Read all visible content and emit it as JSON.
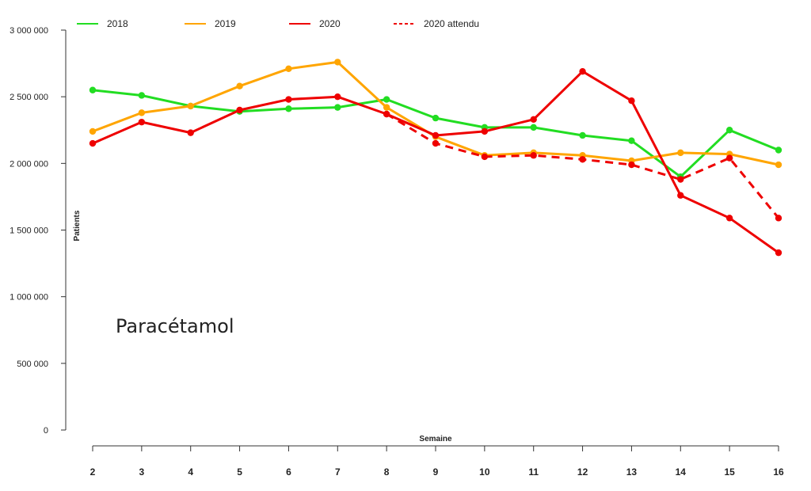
{
  "chart_data": {
    "type": "line",
    "title": "",
    "xlabel": "Semaine",
    "ylabel": "Patients",
    "annotation": "Paracétamol",
    "x": [
      2,
      3,
      4,
      5,
      6,
      7,
      8,
      9,
      10,
      11,
      12,
      13,
      14,
      15,
      16
    ],
    "xlim": [
      2,
      16
    ],
    "ylim": [
      0,
      3000000
    ],
    "yticks": [
      0,
      500000,
      1000000,
      1500000,
      2000000,
      2500000,
      3000000
    ],
    "ytick_labels": [
      "0",
      "500 000",
      "1 000 000",
      "1 500 000",
      "2 000 000",
      "2 500 000",
      "3 000 000"
    ],
    "grid": false,
    "legend_position": "top",
    "series": [
      {
        "name": "2018",
        "color": "#22dd22",
        "dashed": false,
        "values": [
          2550000,
          2510000,
          2430000,
          2390000,
          2410000,
          2420000,
          2480000,
          2340000,
          2270000,
          2270000,
          2210000,
          2170000,
          1900000,
          2250000,
          2100000
        ]
      },
      {
        "name": "2019",
        "color": "#ffa500",
        "dashed": false,
        "values": [
          2240000,
          2380000,
          2430000,
          2580000,
          2710000,
          2760000,
          2420000,
          2200000,
          2060000,
          2080000,
          2060000,
          2020000,
          2080000,
          2070000,
          1990000
        ]
      },
      {
        "name": "2020",
        "color": "#ee0000",
        "dashed": false,
        "values": [
          2150000,
          2310000,
          2230000,
          2400000,
          2480000,
          2500000,
          2370000,
          2210000,
          2240000,
          2330000,
          2690000,
          2470000,
          1760000,
          1590000,
          1330000
        ]
      },
      {
        "name": "2020 attendu",
        "color": "#ee0000",
        "dashed": true,
        "x": [
          8,
          9,
          10,
          11,
          12,
          13,
          14,
          15,
          16
        ],
        "values": [
          2370000,
          2150000,
          2050000,
          2060000,
          2030000,
          1990000,
          1880000,
          2040000,
          1590000
        ]
      }
    ]
  }
}
